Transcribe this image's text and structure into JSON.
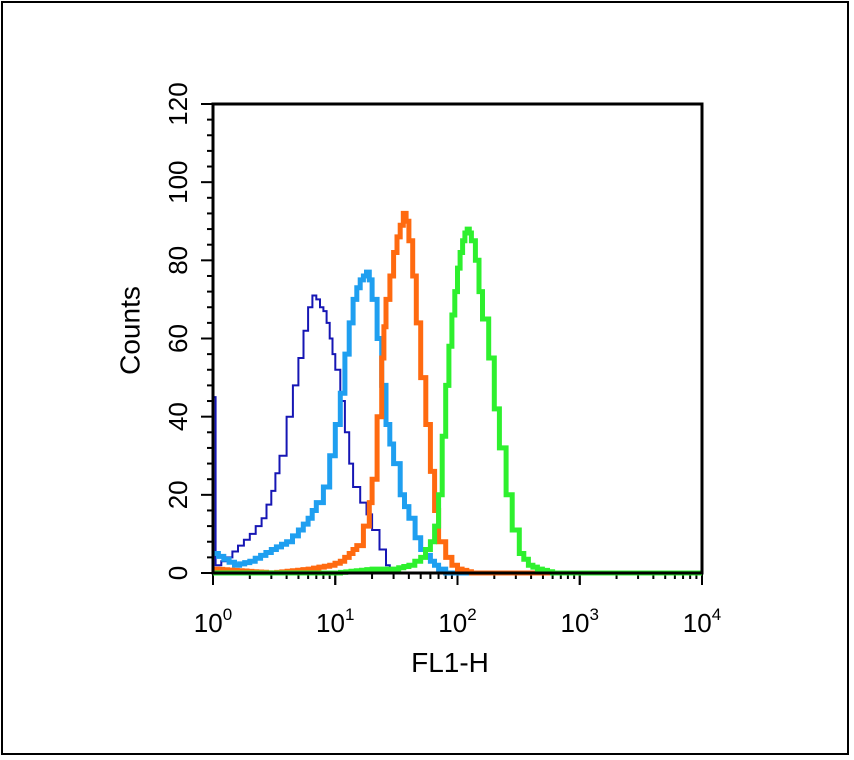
{
  "chart_data": {
    "type": "line",
    "xlabel": "FL1-H",
    "ylabel": "Counts",
    "x_scale": "log",
    "xlim": [
      1,
      10000
    ],
    "ylim": [
      0,
      120
    ],
    "x_ticks": [
      {
        "base": "10",
        "exp": "0",
        "value": 1
      },
      {
        "base": "10",
        "exp": "1",
        "value": 10
      },
      {
        "base": "10",
        "exp": "2",
        "value": 100
      },
      {
        "base": "10",
        "exp": "3",
        "value": 1000
      },
      {
        "base": "10",
        "exp": "4",
        "value": 10000
      }
    ],
    "y_ticks": [
      "0",
      "20",
      "40",
      "60",
      "80",
      "100",
      "120"
    ],
    "grid": false,
    "legend": "none",
    "series": [
      {
        "color": "#1616b4",
        "stroke_width": 2,
        "points": [
          [
            1.0,
            45
          ],
          [
            1.05,
            2
          ],
          [
            1.3,
            4
          ],
          [
            1.6,
            7
          ],
          [
            2.0,
            10
          ],
          [
            2.5,
            14
          ],
          [
            3.0,
            21
          ],
          [
            3.5,
            30
          ],
          [
            4.0,
            40
          ],
          [
            4.5,
            48
          ],
          [
            5.0,
            55
          ],
          [
            5.5,
            62
          ],
          [
            6.0,
            68
          ],
          [
            6.5,
            71
          ],
          [
            7.0,
            70
          ],
          [
            7.5,
            68
          ],
          [
            8.0,
            67
          ],
          [
            8.5,
            64
          ],
          [
            9.0,
            60
          ],
          [
            9.5,
            56
          ],
          [
            10.0,
            52
          ],
          [
            11.0,
            44
          ],
          [
            12.0,
            36
          ],
          [
            13.0,
            28
          ],
          [
            14.0,
            22
          ],
          [
            16.0,
            18
          ],
          [
            18.0,
            15
          ],
          [
            20.0,
            11
          ],
          [
            23.0,
            6
          ],
          [
            26.0,
            2
          ],
          [
            30.0,
            0
          ],
          [
            10000,
            0
          ]
        ]
      },
      {
        "color": "#1f9ff0",
        "stroke_width": 5,
        "points": [
          [
            1.0,
            5
          ],
          [
            1.5,
            2
          ],
          [
            2.0,
            3
          ],
          [
            3.0,
            6
          ],
          [
            4.0,
            8
          ],
          [
            5.0,
            11
          ],
          [
            6.0,
            14
          ],
          [
            7.0,
            18
          ],
          [
            8.0,
            22
          ],
          [
            9.0,
            30
          ],
          [
            10.0,
            38
          ],
          [
            11.0,
            46
          ],
          [
            12.0,
            56
          ],
          [
            13.0,
            64
          ],
          [
            14.0,
            70
          ],
          [
            15.0,
            73
          ],
          [
            16.0,
            75
          ],
          [
            17.0,
            76
          ],
          [
            18.0,
            77
          ],
          [
            19.0,
            75
          ],
          [
            20.0,
            70
          ],
          [
            22.0,
            60
          ],
          [
            24.0,
            48
          ],
          [
            26.0,
            38
          ],
          [
            30.0,
            28
          ],
          [
            34.0,
            20
          ],
          [
            40.0,
            14
          ],
          [
            45.0,
            9
          ],
          [
            50.0,
            6
          ],
          [
            60.0,
            3
          ],
          [
            70.0,
            1
          ],
          [
            80.0,
            0
          ],
          [
            10000,
            0
          ]
        ]
      },
      {
        "color": "#ff6a10",
        "stroke_width": 5,
        "points": [
          [
            1.0,
            1
          ],
          [
            3.0,
            0
          ],
          [
            6.0,
            1
          ],
          [
            9.0,
            2
          ],
          [
            11.0,
            3
          ],
          [
            13.0,
            5
          ],
          [
            15.0,
            7
          ],
          [
            17.0,
            12
          ],
          [
            19.0,
            18
          ],
          [
            20.0,
            24
          ],
          [
            22.0,
            40
          ],
          [
            24.0,
            55
          ],
          [
            25.0,
            63
          ],
          [
            26.0,
            70
          ],
          [
            28.0,
            76
          ],
          [
            30.0,
            82
          ],
          [
            32.0,
            86
          ],
          [
            34.0,
            89
          ],
          [
            36.0,
            92
          ],
          [
            38.0,
            90
          ],
          [
            40.0,
            85
          ],
          [
            43.0,
            76
          ],
          [
            46.0,
            64
          ],
          [
            50.0,
            50
          ],
          [
            55.0,
            38
          ],
          [
            60.0,
            26
          ],
          [
            65.0,
            16
          ],
          [
            70.0,
            8
          ],
          [
            80.0,
            4
          ],
          [
            90.0,
            2
          ],
          [
            100.0,
            1
          ],
          [
            130.0,
            0
          ],
          [
            10000,
            0
          ]
        ]
      },
      {
        "color": "#2ef02e",
        "stroke_width": 5,
        "points": [
          [
            1.0,
            0
          ],
          [
            10.0,
            0
          ],
          [
            20.0,
            1
          ],
          [
            30.0,
            1
          ],
          [
            40.0,
            2
          ],
          [
            50.0,
            4
          ],
          [
            60.0,
            8
          ],
          [
            65.0,
            12
          ],
          [
            70.0,
            20
          ],
          [
            75.0,
            35
          ],
          [
            80.0,
            48
          ],
          [
            85.0,
            58
          ],
          [
            90.0,
            66
          ],
          [
            95.0,
            72
          ],
          [
            100.0,
            78
          ],
          [
            105.0,
            82
          ],
          [
            110.0,
            85
          ],
          [
            115.0,
            87
          ],
          [
            120.0,
            88
          ],
          [
            125.0,
            87
          ],
          [
            130.0,
            85
          ],
          [
            140.0,
            80
          ],
          [
            150.0,
            72
          ],
          [
            160.0,
            65
          ],
          [
            180.0,
            55
          ],
          [
            200.0,
            42
          ],
          [
            220.0,
            32
          ],
          [
            250.0,
            20
          ],
          [
            280.0,
            11
          ],
          [
            320.0,
            5
          ],
          [
            380.0,
            2
          ],
          [
            450.0,
            1
          ],
          [
            600.0,
            0
          ],
          [
            10000,
            0
          ]
        ]
      }
    ]
  }
}
